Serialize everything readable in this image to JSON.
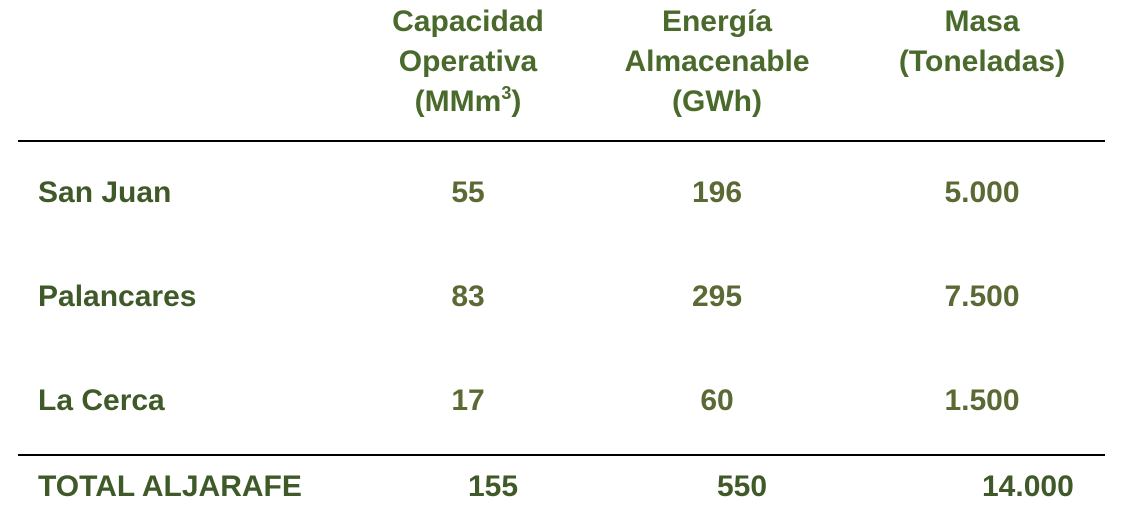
{
  "table": {
    "header": [
      {
        "lines": [
          "Capacidad",
          "Operativa",
          "(MMm"
        ],
        "sup": "3",
        "close": ")"
      },
      {
        "lines": [
          "Energía",
          "Almacenable",
          "(GWh)"
        ]
      },
      {
        "lines": [
          "Masa",
          "(Toneladas)"
        ]
      }
    ],
    "rows": [
      [
        "San Juan",
        "55",
        "196",
        "5.000"
      ],
      [
        "Palancares",
        "83",
        "295",
        "7.500"
      ],
      [
        "La Cerca",
        "17",
        "60",
        "1.500"
      ]
    ],
    "total": [
      "TOTAL ALJARAFE",
      "155",
      "550",
      "14.000"
    ]
  }
}
